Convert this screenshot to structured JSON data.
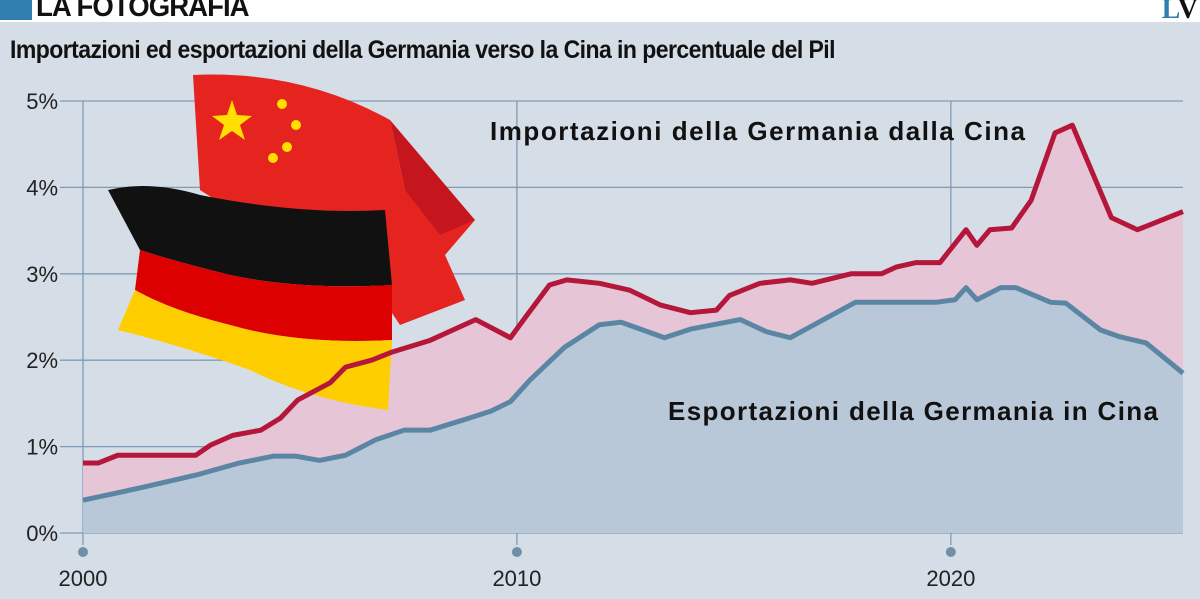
{
  "header": {
    "section": "LA FOTOGRAFIA",
    "logo": "LV"
  },
  "chart_data": {
    "type": "area",
    "title": "Importazioni ed esportazioni della Germania verso la Cina in percentuale del Pil",
    "xlim": [
      2000,
      2025.35
    ],
    "ylim": [
      0,
      5
    ],
    "x_ticks": [
      "2000",
      "2010",
      "2020"
    ],
    "y_ticks": [
      "0%",
      "1%",
      "2%",
      "3%",
      "4%",
      "5%"
    ],
    "grid": true,
    "colors": {
      "imports": "#b5173a",
      "imports_fill": "#e6c5d7",
      "exports": "#5b86a3",
      "exports_fill": "#b9c8d8",
      "background": "#d5dde7"
    },
    "series": [
      {
        "name": "Importazioni della Germania dalla Cina",
        "x": [
          2000,
          2000.35,
          2000.8,
          2002.6,
          2002.95,
          2003.45,
          2004.1,
          2004.55,
          2004.95,
          2005.7,
          2006.05,
          2006.65,
          2007.1,
          2008.0,
          2009.05,
          2009.85,
          2010.2,
          2010.75,
          2011.15,
          2011.9,
          2012.6,
          2013.3,
          2014.0,
          2014.6,
          2014.9,
          2015.6,
          2016.3,
          2016.8,
          2017.7,
          2018.4,
          2018.75,
          2019.2,
          2019.75,
          2020.35,
          2020.6,
          2020.9,
          2021.4,
          2021.85,
          2022.4,
          2022.8,
          2023.7,
          2024.3,
          2025.35
        ],
        "y": [
          0.81,
          0.81,
          0.9,
          0.9,
          1.02,
          1.13,
          1.19,
          1.33,
          1.54,
          1.74,
          1.92,
          2.0,
          2.09,
          2.23,
          2.47,
          2.26,
          2.5,
          2.87,
          2.93,
          2.89,
          2.81,
          2.64,
          2.55,
          2.58,
          2.75,
          2.89,
          2.93,
          2.89,
          3.0,
          3.0,
          3.08,
          3.13,
          3.13,
          3.51,
          3.33,
          3.51,
          3.53,
          3.85,
          4.63,
          4.72,
          3.65,
          3.51,
          3.72
        ]
      },
      {
        "name": "Esportazioni della Germania in Cina",
        "x": [
          2000,
          2001.3,
          2002.6,
          2003.6,
          2004.4,
          2004.9,
          2005.45,
          2006.05,
          2006.75,
          2007.4,
          2008.0,
          2008.9,
          2009.4,
          2009.85,
          2010.3,
          2011.1,
          2011.9,
          2012.4,
          2013.4,
          2014.0,
          2015.15,
          2015.75,
          2016.3,
          2017.8,
          2019.65,
          2020.1,
          2020.35,
          2020.6,
          2021.15,
          2021.5,
          2022.3,
          2022.65,
          2023.45,
          2023.9,
          2024.5,
          2025.35
        ],
        "y": [
          0.38,
          0.52,
          0.67,
          0.81,
          0.89,
          0.89,
          0.84,
          0.9,
          1.08,
          1.19,
          1.19,
          1.33,
          1.41,
          1.52,
          1.77,
          2.15,
          2.41,
          2.44,
          2.26,
          2.36,
          2.47,
          2.33,
          2.26,
          2.67,
          2.67,
          2.7,
          2.84,
          2.7,
          2.84,
          2.84,
          2.67,
          2.66,
          2.35,
          2.27,
          2.2,
          1.85
        ]
      }
    ]
  }
}
